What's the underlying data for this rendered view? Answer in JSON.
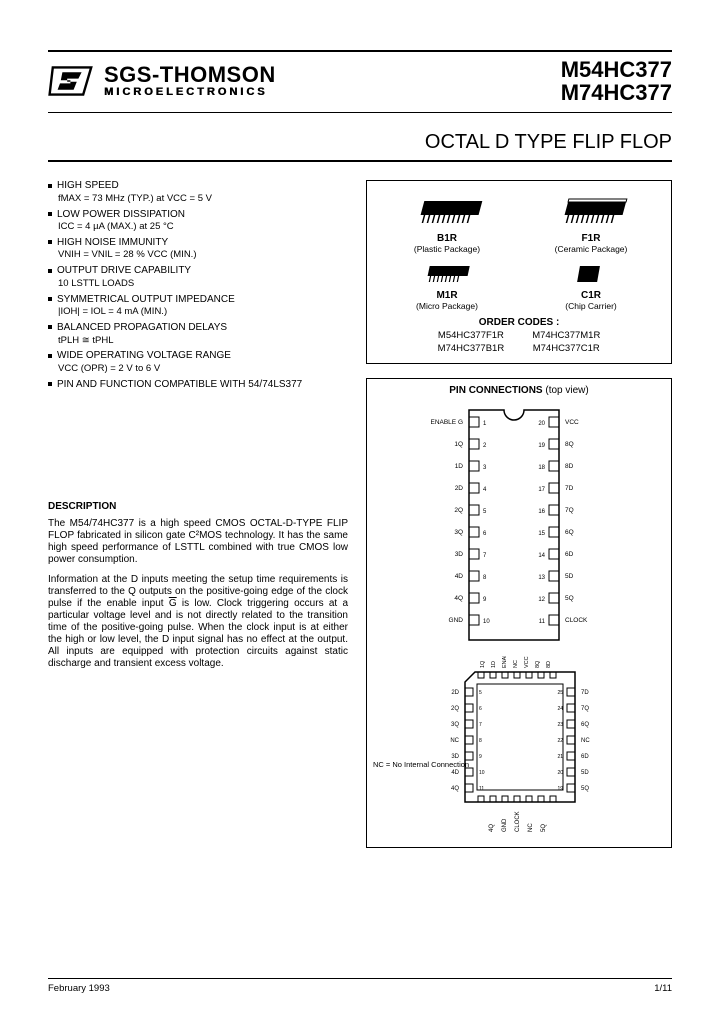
{
  "company": {
    "name": "SGS-THOMSON",
    "sub": "MICROELECTRONICS"
  },
  "parts": [
    "M54HC377",
    "M74HC377"
  ],
  "subtitle": "OCTAL D TYPE FLIP FLOP",
  "features": [
    {
      "head": "HIGH SPEED",
      "sub": "fMAX = 73 MHz (TYP.) at VCC = 5 V"
    },
    {
      "head": "LOW POWER DISSIPATION",
      "sub": "ICC = 4 µA (MAX.) at 25 °C"
    },
    {
      "head": "HIGH NOISE IMMUNITY",
      "sub": "VNIH = VNIL = 28 % VCC (MIN.)"
    },
    {
      "head": "OUTPUT DRIVE CAPABILITY",
      "sub": "10 LSTTL LOADS"
    },
    {
      "head": "SYMMETRICAL OUTPUT IMPEDANCE",
      "sub": "|IOH| = IOL = 4 mA (MIN.)"
    },
    {
      "head": "BALANCED PROPAGATION DELAYS",
      "sub": "tPLH ≅ tPHL"
    },
    {
      "head": "WIDE OPERATING VOLTAGE RANGE",
      "sub": "VCC (OPR) = 2 V to 6 V"
    },
    {
      "head": "PIN AND FUNCTION COMPATIBLE WITH 54/74LS377",
      "sub": ""
    }
  ],
  "packages": {
    "row1": [
      {
        "code": "B1R",
        "desc": "(Plastic Package)"
      },
      {
        "code": "F1R",
        "desc": "(Ceramic Package)"
      }
    ],
    "row2": [
      {
        "code": "M1R",
        "desc": "(Micro Package)"
      },
      {
        "code": "C1R",
        "desc": "(Chip Carrier)"
      }
    ],
    "order_head": "ORDER CODES :",
    "order": [
      [
        "M54HC377F1R",
        "M74HC377M1R"
      ],
      [
        "M74HC377B1R",
        "M74HC377C1R"
      ]
    ]
  },
  "description": {
    "head": "DESCRIPTION",
    "p1": "The M54/74HC377 is a high speed CMOS OCTAL-D-TYPE FLIP FLOP fabricated in silicon gate C²MOS technology. It has the same high speed performance of LSTTL combined with true CMOS low power consumption.",
    "p2": "Information at the D inputs meeting the setup time requirements is transferred to the Q outputs on the positive-going edge of the clock pulse if the enable input G is low. Clock triggering occurs at a particular voltage level and is not directly related to the transition time of the positive-going pulse. When the clock input is at either the high or low level, the D input signal has no effect at the output. All inputs are equipped with protection circuits against static discharge and transient excess voltage."
  },
  "pinbox": {
    "head": "PIN CONNECTIONS",
    "tv": "(top view)",
    "dip_left": [
      "ENABLE G",
      "1Q",
      "1D",
      "2D",
      "2Q",
      "3Q",
      "3D",
      "4D",
      "4Q",
      "GND"
    ],
    "dip_right": [
      "VCC",
      "8Q",
      "8D",
      "7D",
      "7Q",
      "6Q",
      "6D",
      "5D",
      "5Q",
      "CLOCK"
    ],
    "plcc_bottom": [
      "1Q",
      "1D",
      "ENABLE G",
      "NC",
      "VCC",
      "8Q",
      "8D"
    ],
    "plcc_left": [
      "2D",
      "2Q",
      "3Q",
      "NC",
      "3D",
      "4D",
      "4Q"
    ],
    "plcc_right": [
      "7D",
      "7Q",
      "6Q",
      "NC",
      "6D",
      "5D",
      "5Q"
    ],
    "plcc_top_rot": [
      "4Q",
      "GND",
      "CLOCK",
      "NC",
      "5Q"
    ],
    "nc": "NC = No Internal Connection"
  },
  "footer": {
    "date": "February 1993",
    "page": "1/11"
  },
  "colors": {
    "ink": "#000000",
    "bg": "#ffffff"
  }
}
